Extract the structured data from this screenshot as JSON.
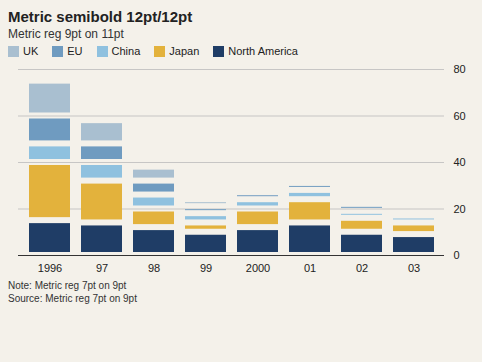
{
  "chart_data": {
    "type": "bar",
    "stacked": true,
    "title": "Metric semibold 12pt/12pt",
    "subtitle": "Metric reg 9pt on 11pt",
    "annotations": [
      "Note: Metric reg 7pt on 9pt",
      "Source: Metric reg 7pt on 9pt"
    ],
    "categories": [
      "1996",
      "97",
      "98",
      "99",
      "2000",
      "01",
      "02",
      "03"
    ],
    "series": [
      {
        "name": "UK",
        "color": "#a9bfd0",
        "values": [
          15,
          10,
          6,
          3,
          2,
          2,
          2,
          2
        ]
      },
      {
        "name": "EU",
        "color": "#6f9bc0",
        "values": [
          12,
          8,
          6,
          3,
          3,
          3,
          3,
          2
        ]
      },
      {
        "name": "China",
        "color": "#8fc1df",
        "values": [
          8,
          8,
          6,
          4,
          4,
          4,
          3,
          3
        ]
      },
      {
        "name": "Japan",
        "color": "#e3b23c",
        "values": [
          25,
          18,
          8,
          4,
          8,
          10,
          6,
          5
        ]
      },
      {
        "name": "North America",
        "color": "#1f3d66",
        "values": [
          15,
          14,
          12,
          10,
          12,
          14,
          10,
          9
        ]
      }
    ],
    "ylim": [
      0,
      80
    ],
    "yticks": [
      0,
      20,
      40,
      60,
      80
    ],
    "grid": true,
    "legend": "top"
  }
}
